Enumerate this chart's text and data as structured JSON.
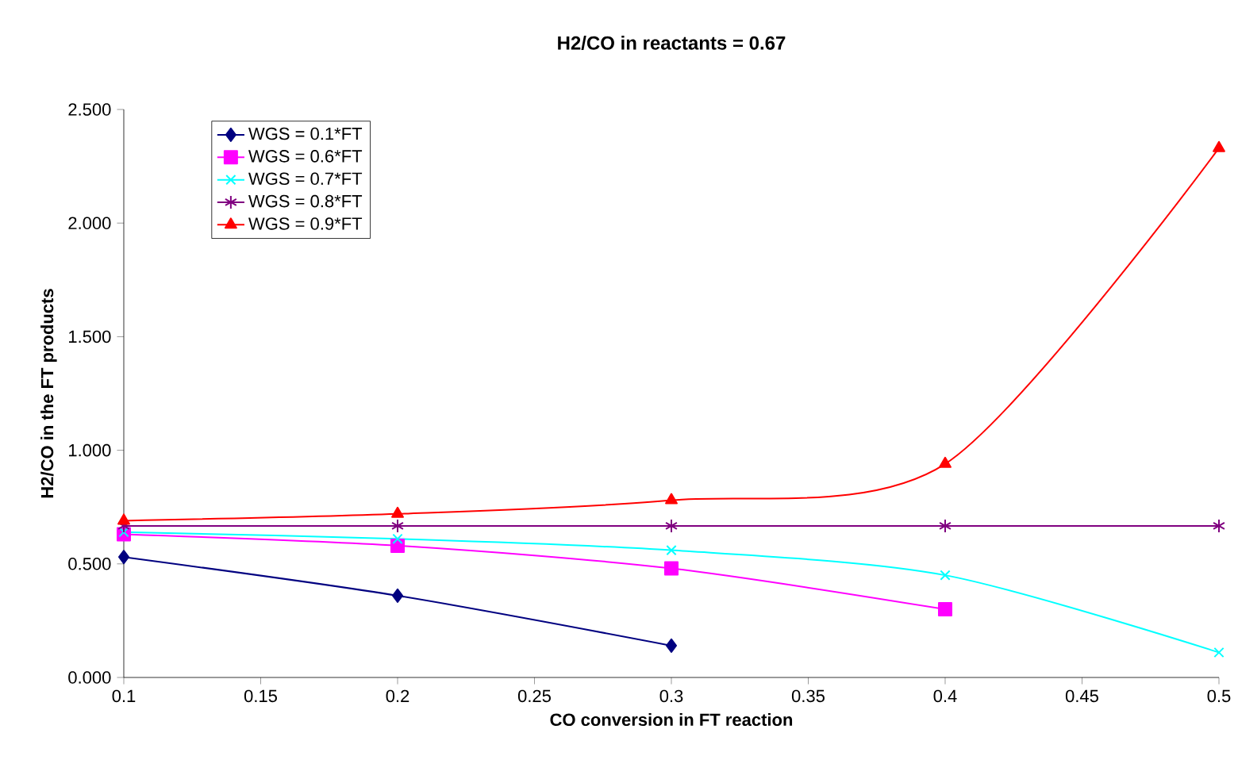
{
  "chart_data": {
    "type": "line",
    "title": "H2/CO in reactants = 0.67",
    "xlabel": "CO conversion in FT reaction",
    "ylabel": "H2/CO in the FT products",
    "x": [
      0.1,
      0.2,
      0.3,
      0.4,
      0.5
    ],
    "series": [
      {
        "name": "WGS = 0.1*FT",
        "color": "#000080",
        "marker": "diamond",
        "values": [
          0.53,
          0.36,
          0.14,
          null,
          null
        ]
      },
      {
        "name": "WGS = 0.6*FT",
        "color": "#ff00ff",
        "marker": "square",
        "values": [
          0.63,
          0.58,
          0.48,
          0.3,
          null
        ]
      },
      {
        "name": "WGS = 0.7*FT",
        "color": "#00ffff",
        "marker": "x",
        "values": [
          0.64,
          0.61,
          0.56,
          0.45,
          0.11
        ]
      },
      {
        "name": "WGS = 0.8*FT",
        "color": "#800080",
        "marker": "cross",
        "values": [
          0.667,
          0.667,
          0.667,
          0.667,
          0.667
        ]
      },
      {
        "name": "WGS = 0.9*FT",
        "color": "#ff0000",
        "marker": "triangle",
        "values": [
          0.69,
          0.72,
          0.78,
          0.94,
          2.33
        ]
      }
    ],
    "xlim": [
      0.1,
      0.5
    ],
    "xticks": [
      0.1,
      0.15,
      0.2,
      0.25,
      0.3,
      0.35,
      0.4,
      0.45,
      0.5
    ],
    "ylim": [
      0,
      2.5
    ],
    "yticks": [
      {
        "value": 0,
        "label": "0.000"
      },
      {
        "value": 0.5,
        "label": "0.500"
      },
      {
        "value": 1,
        "label": "1.000"
      },
      {
        "value": 1.5,
        "label": "1.500"
      },
      {
        "value": 2,
        "label": "2.000"
      },
      {
        "value": 2.5,
        "label": "2.500"
      }
    ],
    "grid": false,
    "legend": "top left",
    "line_style": "solid"
  }
}
